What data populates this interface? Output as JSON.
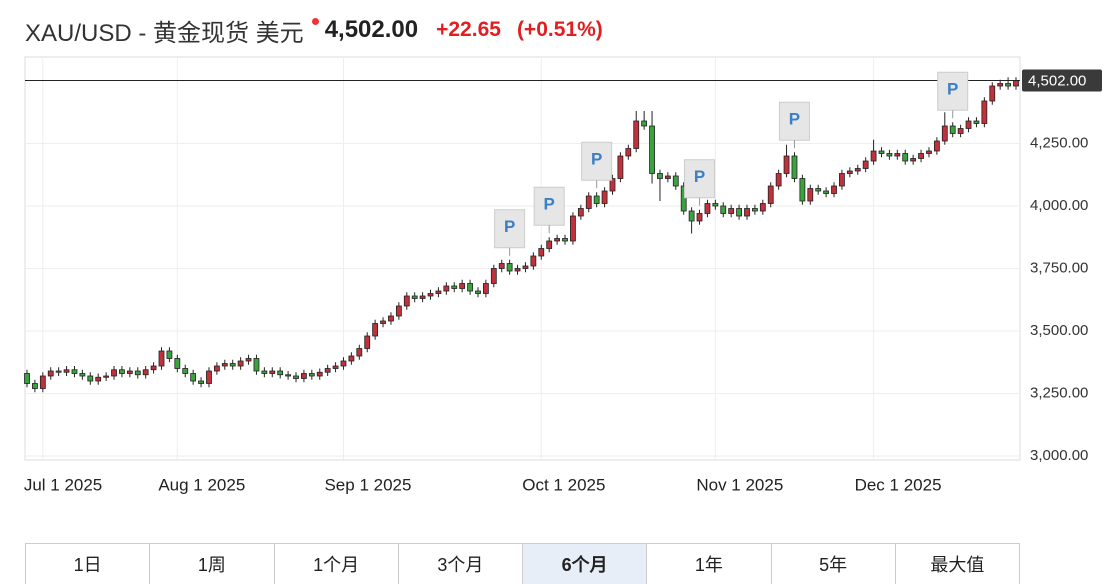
{
  "header": {
    "symbol": "XAU/USD - 黄金现货 美元",
    "change": "+22.65",
    "change_pct": "(+0.51%)"
  },
  "chart_data": {
    "type": "candlestick",
    "categories": [
      null,
      null,
      "Jul 1 2025",
      null,
      null,
      null,
      null,
      null,
      null,
      null,
      null,
      null,
      null,
      null,
      null,
      null,
      null,
      null,
      null,
      "Aug 1 2025",
      null,
      null,
      null,
      null,
      null,
      null,
      null,
      null,
      null,
      null,
      null,
      null,
      null,
      null,
      null,
      null,
      null,
      null,
      null,
      null,
      "Sep 1 2025",
      null,
      null,
      null,
      null,
      null,
      null,
      null,
      null,
      null,
      null,
      null,
      null,
      null,
      null,
      null,
      null,
      null,
      null,
      null,
      null,
      null,
      null,
      null,
      null,
      "Oct 1 2025",
      null,
      null,
      null,
      null,
      null,
      null,
      null,
      null,
      null,
      null,
      null,
      null,
      null,
      null,
      null,
      null,
      null,
      null,
      null,
      null,
      null,
      "Nov 1 2025",
      null,
      null,
      null,
      null,
      null,
      null,
      null,
      null,
      null,
      null,
      null,
      null,
      null,
      null,
      null,
      null,
      null,
      null,
      null,
      "Dec 1 2025",
      null,
      null,
      null,
      null,
      null,
      null,
      null,
      null,
      null,
      null,
      null,
      null,
      null,
      null,
      null,
      null,
      null,
      null
    ],
    "open": [
      3330,
      3290,
      3270,
      3320,
      3340,
      3335,
      3345,
      3330,
      3320,
      3300,
      3315,
      3320,
      3345,
      3330,
      3340,
      3325,
      3345,
      3360,
      3420,
      3390,
      3350,
      3330,
      3300,
      3290,
      3340,
      3360,
      3370,
      3360,
      3380,
      3390,
      3340,
      3330,
      3340,
      3325,
      3320,
      3310,
      3330,
      3320,
      3335,
      3350,
      3360,
      3380,
      3400,
      3430,
      3480,
      3530,
      3540,
      3560,
      3600,
      3640,
      3630,
      3640,
      3650,
      3660,
      3680,
      3670,
      3690,
      3660,
      3650,
      3690,
      3750,
      3770,
      3740,
      3750,
      3760,
      3800,
      3830,
      3860,
      3870,
      3860,
      3960,
      3990,
      4040,
      4010,
      4060,
      4110,
      4200,
      4230,
      4340,
      4320,
      4130,
      4110,
      4120,
      4080,
      3980,
      3940,
      3970,
      4010,
      4000,
      3970,
      3990,
      3960,
      3990,
      3980,
      4010,
      4080,
      4130,
      4200,
      4110,
      4020,
      4070,
      4060,
      4050,
      4080,
      4130,
      4140,
      4150,
      4180,
      4220,
      4210,
      4200,
      4210,
      4180,
      4190,
      4210,
      4220,
      4260,
      4320,
      4290,
      4310,
      4340,
      4330,
      4420,
      4480,
      4490,
      4480
    ],
    "high": [
      3345,
      3305,
      3335,
      3355,
      3355,
      3360,
      3360,
      3345,
      3335,
      3330,
      3335,
      3360,
      3360,
      3355,
      3355,
      3360,
      3375,
      3435,
      3435,
      3405,
      3365,
      3345,
      3315,
      3355,
      3375,
      3385,
      3385,
      3395,
      3405,
      3405,
      3355,
      3355,
      3355,
      3340,
      3335,
      3345,
      3345,
      3350,
      3365,
      3375,
      3395,
      3415,
      3445,
      3495,
      3545,
      3555,
      3575,
      3615,
      3655,
      3655,
      3655,
      3665,
      3675,
      3695,
      3695,
      3705,
      3705,
      3675,
      3705,
      3765,
      3785,
      3785,
      3765,
      3775,
      3815,
      3845,
      3875,
      3885,
      3885,
      3975,
      4005,
      4055,
      4055,
      4075,
      4125,
      4215,
      4245,
      4380,
      4380,
      4380,
      4145,
      4135,
      4135,
      4095,
      3995,
      3985,
      4025,
      4025,
      4015,
      4005,
      4005,
      4005,
      4005,
      4025,
      4095,
      4145,
      4245,
      4215,
      4125,
      4085,
      4085,
      4075,
      4095,
      4145,
      4155,
      4165,
      4195,
      4265,
      4235,
      4225,
      4225,
      4225,
      4205,
      4225,
      4235,
      4275,
      4375,
      4335,
      4325,
      4355,
      4355,
      4435,
      4495,
      4505,
      4515,
      4515
    ],
    "low": [
      3275,
      3255,
      3255,
      3305,
      3320,
      3320,
      3315,
      3305,
      3285,
      3285,
      3300,
      3305,
      3315,
      3315,
      3310,
      3310,
      3330,
      3345,
      3375,
      3335,
      3315,
      3285,
      3275,
      3275,
      3325,
      3345,
      3345,
      3345,
      3365,
      3325,
      3315,
      3315,
      3310,
      3305,
      3295,
      3295,
      3305,
      3305,
      3320,
      3335,
      3345,
      3365,
      3385,
      3415,
      3465,
      3515,
      3525,
      3545,
      3585,
      3615,
      3615,
      3625,
      3635,
      3645,
      3655,
      3655,
      3645,
      3635,
      3635,
      3675,
      3735,
      3725,
      3725,
      3735,
      3745,
      3785,
      3815,
      3845,
      3845,
      3845,
      3945,
      3975,
      3995,
      3995,
      4045,
      4095,
      4185,
      4215,
      4305,
      4090,
      4020,
      4095,
      4065,
      3965,
      3890,
      3925,
      3955,
      3985,
      3955,
      3955,
      3945,
      3945,
      3965,
      3965,
      3995,
      4065,
      4115,
      4095,
      4005,
      4005,
      4045,
      4035,
      4035,
      4065,
      4115,
      4125,
      4135,
      4165,
      4195,
      4185,
      4185,
      4165,
      4165,
      4175,
      4195,
      4205,
      4245,
      4275,
      4275,
      4295,
      4315,
      4315,
      4405,
      4465,
      4465,
      4465
    ],
    "close": [
      3290,
      3270,
      3320,
      3340,
      3335,
      3345,
      3330,
      3320,
      3300,
      3315,
      3320,
      3345,
      3330,
      3340,
      3325,
      3345,
      3360,
      3420,
      3390,
      3350,
      3330,
      3300,
      3290,
      3340,
      3360,
      3370,
      3360,
      3380,
      3390,
      3340,
      3330,
      3340,
      3325,
      3320,
      3310,
      3330,
      3320,
      3335,
      3350,
      3360,
      3380,
      3400,
      3430,
      3480,
      3530,
      3540,
      3560,
      3600,
      3640,
      3630,
      3640,
      3650,
      3660,
      3680,
      3670,
      3690,
      3660,
      3650,
      3690,
      3750,
      3770,
      3740,
      3750,
      3760,
      3800,
      3830,
      3860,
      3870,
      3860,
      3960,
      3990,
      4040,
      4010,
      4060,
      4110,
      4200,
      4230,
      4340,
      4320,
      4130,
      4110,
      4120,
      4080,
      3980,
      3940,
      3970,
      4010,
      4000,
      3970,
      3990,
      3960,
      3990,
      3980,
      4010,
      4080,
      4130,
      4200,
      4110,
      4020,
      4070,
      4060,
      4050,
      4080,
      4130,
      4140,
      4150,
      4180,
      4220,
      4210,
      4200,
      4210,
      4180,
      4190,
      4210,
      4220,
      4260,
      4320,
      4290,
      4310,
      4340,
      4330,
      4420,
      4480,
      4490,
      4480,
      4502
    ],
    "up_color": "#c0313c",
    "down_color": "#3aa33e",
    "ylim": [
      2984,
      4596
    ],
    "yticks": [
      {
        "value": 3000,
        "label": "3,000.00"
      },
      {
        "value": 3250,
        "label": "3,250.00"
      },
      {
        "value": 3500,
        "label": "3,500.00"
      },
      {
        "value": 3750,
        "label": "3,750.00"
      },
      {
        "value": 4000,
        "label": "4,000.00"
      },
      {
        "value": 4250,
        "label": "4,250.00"
      }
    ],
    "last_price": {
      "value": 4502,
      "label": "4,502.00"
    },
    "annotations": [
      {
        "text": "P",
        "at": 61
      },
      {
        "text": "P",
        "at": 66
      },
      {
        "text": "P",
        "at": 72
      },
      {
        "text": "P",
        "at": 85
      },
      {
        "text": "P",
        "at": 97
      },
      {
        "text": "P",
        "at": 117
      }
    ],
    "grid": true
  },
  "tabs": [
    "1日",
    "1周",
    "1个月",
    "3个月",
    "6个月",
    "1年",
    "5年",
    "最大值"
  ],
  "active_tab": 4
}
